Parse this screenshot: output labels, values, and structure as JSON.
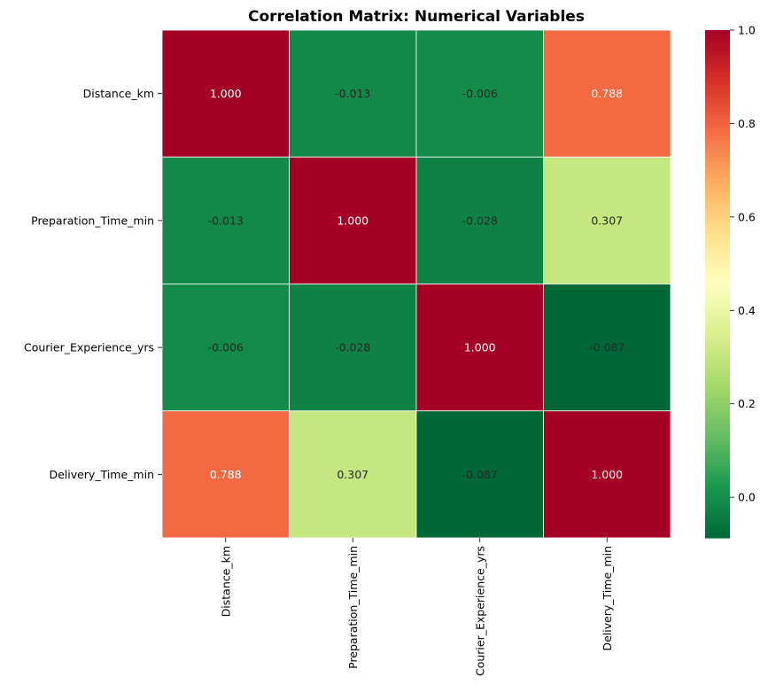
{
  "chart_data": {
    "type": "heatmap",
    "title": "Correlation Matrix: Numerical Variables",
    "xlabel": "",
    "ylabel": "",
    "x_categories": [
      "Distance_km",
      "Preparation_Time_min",
      "Courier_Experience_yrs",
      "Delivery_Time_min"
    ],
    "y_categories": [
      "Distance_km",
      "Preparation_Time_min",
      "Courier_Experience_yrs",
      "Delivery_Time_min"
    ],
    "values": [
      [
        1.0,
        -0.013,
        -0.006,
        0.788
      ],
      [
        -0.013,
        1.0,
        -0.028,
        0.307
      ],
      [
        -0.006,
        -0.028,
        1.0,
        -0.087
      ],
      [
        0.788,
        0.307,
        -0.087,
        1.0
      ]
    ],
    "value_labels": [
      [
        "1.000",
        "-0.013",
        "-0.006",
        "0.788"
      ],
      [
        "-0.013",
        "1.000",
        "-0.028",
        "0.307"
      ],
      [
        "-0.006",
        "-0.028",
        "1.000",
        "-0.087"
      ],
      [
        "0.788",
        "0.307",
        "-0.087",
        "1.000"
      ]
    ],
    "colormap": "RdYlGn_r",
    "color_range": [
      -0.087,
      1.0
    ],
    "colorbar_ticks": [
      0.0,
      0.2,
      0.4,
      0.6,
      0.8,
      1.0
    ],
    "colorbar_tick_labels": [
      "0.0",
      "0.2",
      "0.4",
      "0.6",
      "0.8",
      "1.0"
    ],
    "annotation_dark_color": "#262626",
    "annotation_light_color": "#ffffff",
    "grid_line_color": "#ffffff",
    "grid": false,
    "legend": "colorbar-right"
  }
}
